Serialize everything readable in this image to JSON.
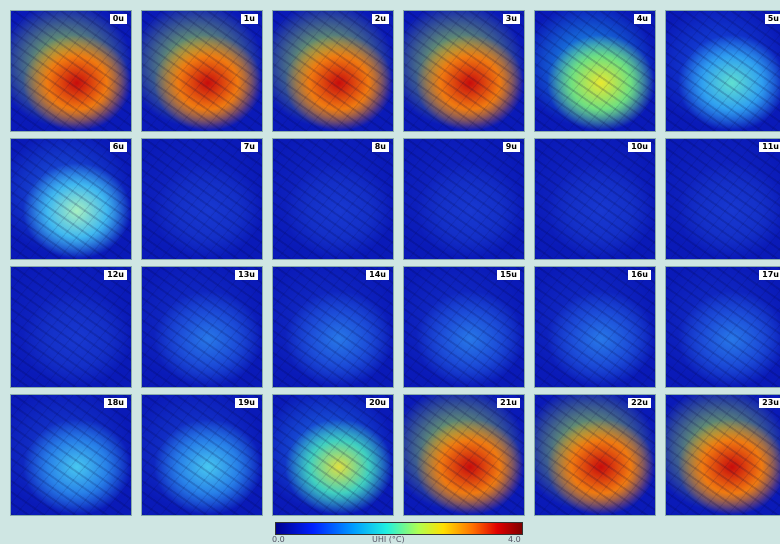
{
  "panels": [
    "0u",
    "1u",
    "2u",
    "3u",
    "4u",
    "5u",
    "6u",
    "7u",
    "8u",
    "9u",
    "10u",
    "11u",
    "12u",
    "13u",
    "14u",
    "15u",
    "16u",
    "17u",
    "18u",
    "19u",
    "20u",
    "21u",
    "22u",
    "23u"
  ],
  "colorbar": {
    "min_label": "0.0",
    "max_label": "4.0",
    "title": "UHI (°C)"
  }
}
